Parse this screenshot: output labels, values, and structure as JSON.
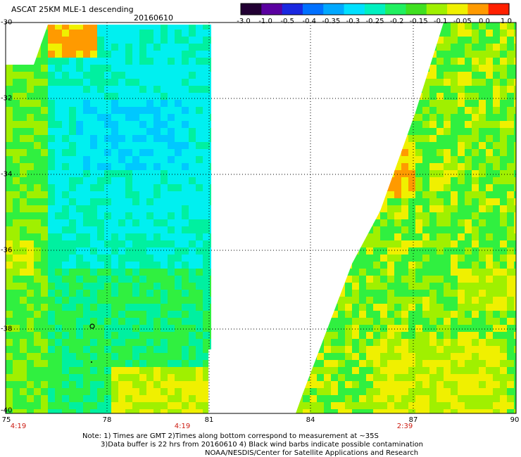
{
  "header": {
    "title": "ASCAT 25KM MLE-1 descending",
    "date": "20160610"
  },
  "colorbar": {
    "ticks": [
      "-3.0",
      "-1.0",
      "-0.5",
      "-0.4",
      "-0.35",
      "-0.3",
      "-0.25",
      "-0.2",
      "-0.15",
      "-0.1",
      "-0.05",
      "0.0",
      "1.0"
    ],
    "colors": [
      "#220033",
      "#5a00a0",
      "#1a28e0",
      "#0070ff",
      "#00a8ff",
      "#00e0ff",
      "#00f0c0",
      "#20f060",
      "#40e020",
      "#a0f000",
      "#f0f000",
      "#ff9a00",
      "#ff2000"
    ]
  },
  "map": {
    "x_axis": {
      "labels": [
        "75",
        "78",
        "81",
        "84",
        "87",
        "90"
      ],
      "range": [
        75,
        90
      ]
    },
    "y_axis": {
      "labels": [
        "-30",
        "-32",
        "-34",
        "-36",
        "-38",
        "-40"
      ],
      "range": [
        -40,
        -30
      ]
    },
    "time_labels": [
      {
        "lon": 75,
        "text": "4:19"
      },
      {
        "lon": 80.2,
        "text": "4:19"
      },
      {
        "lon": 86.8,
        "text": "2:39"
      }
    ],
    "colors": {
      "cyan": "#00f0f0",
      "light_blue": "#00c8ff",
      "teal": "#00f0a0",
      "green": "#30f040",
      "lime": "#a0f000",
      "yellow": "#f0f000",
      "orange": "#ff9a00"
    }
  },
  "footer": {
    "line1": "Note: 1) Times are GMT 2)Times along bottom correspond to measurement at ~35S",
    "line2": "3)Data buffer is 22 hrs from 20160610 4) Black wind barbs indicate possible contamination",
    "line3": "NOAA/NESDIS/Center for Satellite Applications and Research"
  }
}
